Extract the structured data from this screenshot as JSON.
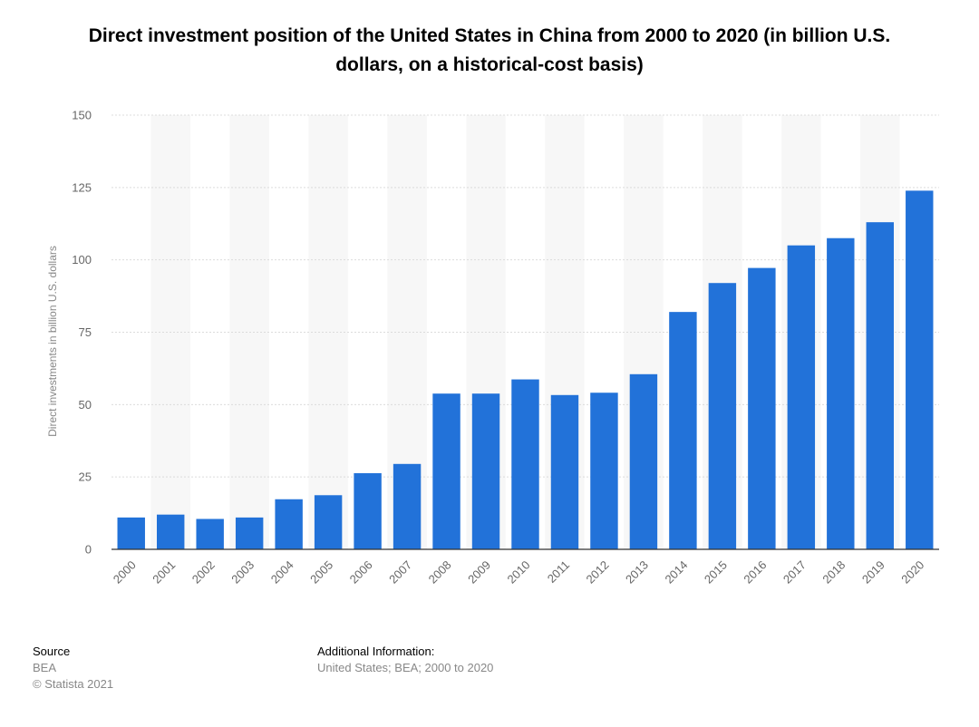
{
  "chart_data": {
    "type": "bar",
    "title": "Direct investment position of the United States in China from 2000 to 2020 (in billion U.S. dollars, on a historical-cost basis)",
    "ylabel": "Direct investments in billion U.S. dollars",
    "xlabel": "",
    "ylim": [
      0,
      150
    ],
    "yticks": [
      0,
      25,
      50,
      75,
      100,
      125,
      150
    ],
    "grid": true,
    "categories": [
      "2000",
      "2001",
      "2002",
      "2003",
      "2004",
      "2005",
      "2006",
      "2007",
      "2008",
      "2009",
      "2010",
      "2011",
      "2012",
      "2013",
      "2014",
      "2015",
      "2016",
      "2017",
      "2018",
      "2019",
      "2020"
    ],
    "values": [
      11,
      12,
      10.5,
      11,
      17.3,
      18.7,
      26.3,
      29.5,
      53.8,
      53.8,
      58.7,
      53.3,
      54.1,
      60.5,
      82,
      92,
      97.2,
      105,
      107.5,
      113,
      123.9
    ],
    "bar_color": "#2272d9"
  },
  "footer": {
    "source_label": "Source",
    "source_value": "BEA",
    "copyright": "© Statista 2021",
    "additional_label": "Additional Information:",
    "additional_value": "United States; BEA; 2000 to 2020"
  }
}
